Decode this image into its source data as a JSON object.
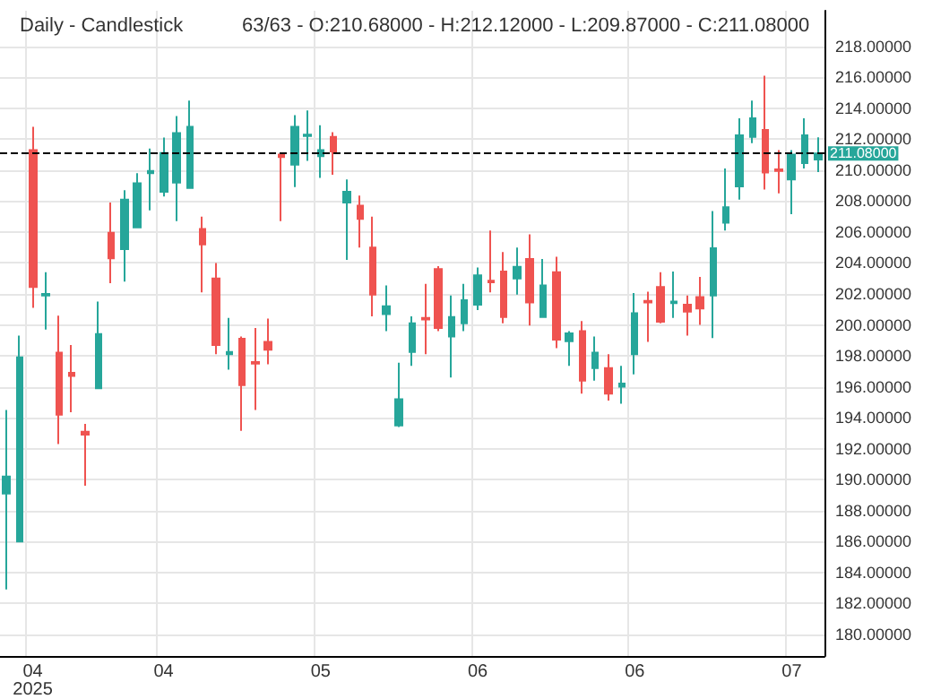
{
  "chart_data": {
    "type": "candlestick",
    "title": "Daily - Candlestick",
    "subtitle": "63/63 - O:210.68000 - H:212.12000 - L:209.87000 - C:211.08000",
    "categories": [
      null,
      null,
      "04\n2025",
      null,
      null,
      null,
      null,
      null,
      null,
      null,
      null,
      null,
      "04",
      null,
      null,
      null,
      null,
      null,
      null,
      null,
      null,
      null,
      null,
      null,
      "05",
      null,
      null,
      null,
      null,
      null,
      null,
      null,
      null,
      null,
      null,
      null,
      "06",
      null,
      null,
      null,
      null,
      null,
      null,
      null,
      null,
      null,
      null,
      null,
      "06",
      null,
      null,
      null,
      null,
      null,
      null,
      null,
      null,
      null,
      null,
      null,
      "07",
      null,
      null
    ],
    "ohlc": [
      [
        189.1,
        194.5,
        182.9,
        190.2
      ],
      [
        186.0,
        199.3,
        186.0,
        197.9
      ],
      [
        211.3,
        212.8,
        201.1,
        202.45
      ],
      [
        201.9,
        203.4,
        199.7,
        202.0
      ],
      [
        198.2,
        200.6,
        192.3,
        194.2
      ],
      [
        196.9,
        198.7,
        194.35,
        196.7
      ],
      [
        193.1,
        193.6,
        189.6,
        192.9
      ],
      [
        195.9,
        201.5,
        195.9,
        199.4
      ],
      [
        205.95,
        207.9,
        202.7,
        204.3
      ],
      [
        204.9,
        208.7,
        202.8,
        208.1
      ],
      [
        206.3,
        209.8,
        206.3,
        209.15
      ],
      [
        209.8,
        211.4,
        207.4,
        209.95
      ],
      [
        208.6,
        212.1,
        208.3,
        211.1
      ],
      [
        209.2,
        213.5,
        206.7,
        212.4
      ],
      [
        208.85,
        214.5,
        208.85,
        212.8
      ],
      [
        206.2,
        207.0,
        202.1,
        205.2
      ],
      [
        203.0,
        204.0,
        198.1,
        198.7
      ],
      [
        198.1,
        200.45,
        197.1,
        198.25
      ],
      [
        199.1,
        199.25,
        193.15,
        196.1
      ],
      [
        197.6,
        199.8,
        194.5,
        197.5
      ],
      [
        198.9,
        200.4,
        197.45,
        198.4
      ],
      [
        211.0,
        211.1,
        206.7,
        210.85
      ],
      [
        210.35,
        213.55,
        208.9,
        212.8
      ],
      [
        212.2,
        213.85,
        210.6,
        212.3
      ],
      [
        210.9,
        212.9,
        209.5,
        211.3
      ],
      [
        212.15,
        212.45,
        209.7,
        211.2
      ],
      [
        207.9,
        209.4,
        204.2,
        208.6
      ],
      [
        207.7,
        208.35,
        205.0,
        206.85
      ],
      [
        205.0,
        207.0,
        200.55,
        201.95
      ],
      [
        200.7,
        202.55,
        199.6,
        201.2
      ],
      [
        193.5,
        197.55,
        193.4,
        195.2
      ],
      [
        198.25,
        200.55,
        197.35,
        200.1
      ],
      [
        200.45,
        202.65,
        198.1,
        200.35
      ],
      [
        203.6,
        203.8,
        199.6,
        199.8
      ],
      [
        199.25,
        201.9,
        196.6,
        200.5
      ],
      [
        200.1,
        202.65,
        199.6,
        201.6
      ],
      [
        201.3,
        203.7,
        200.95,
        203.2
      ],
      [
        202.85,
        206.1,
        202.1,
        202.75
      ],
      [
        203.45,
        204.7,
        200.1,
        200.5
      ],
      [
        203.0,
        205.0,
        201.95,
        203.75
      ],
      [
        204.25,
        205.85,
        199.95,
        201.45
      ],
      [
        200.5,
        204.25,
        200.5,
        202.55
      ],
      [
        203.4,
        204.4,
        198.5,
        199.05
      ],
      [
        198.95,
        199.6,
        197.35,
        199.45
      ],
      [
        199.6,
        200.25,
        195.55,
        196.4
      ],
      [
        197.2,
        199.25,
        196.4,
        198.2
      ],
      [
        197.2,
        198.1,
        195.1,
        195.55
      ],
      [
        196.0,
        197.35,
        194.9,
        196.2
      ],
      [
        198.1,
        202.05,
        196.8,
        200.75
      ],
      [
        201.55,
        202.15,
        198.9,
        201.45
      ],
      [
        202.45,
        203.4,
        200.1,
        200.2
      ],
      [
        201.4,
        203.45,
        200.45,
        201.5
      ],
      [
        201.3,
        201.9,
        199.3,
        200.85
      ],
      [
        201.8,
        203.1,
        200.0,
        201.05
      ],
      [
        201.9,
        207.35,
        199.15,
        204.95
      ],
      [
        206.6,
        210.1,
        206.1,
        207.6
      ],
      [
        208.95,
        213.35,
        208.1,
        212.25
      ],
      [
        212.15,
        214.5,
        211.75,
        213.35
      ],
      [
        212.6,
        216.1,
        208.75,
        209.85
      ],
      [
        210.05,
        211.3,
        208.5,
        209.95
      ],
      [
        209.4,
        211.3,
        207.15,
        211.0
      ],
      [
        210.45,
        213.35,
        210.1,
        212.25
      ],
      [
        210.68,
        212.12,
        209.87,
        211.08
      ]
    ],
    "colors": [
      "#26a69a",
      "#26a69a",
      "#ef5350",
      "#26a69a",
      "#ef5350",
      "#ef5350",
      "#ef5350",
      "#26a69a",
      "#ef5350",
      "#26a69a",
      "#26a69a",
      "#26a69a",
      "#26a69a",
      "#26a69a",
      "#26a69a",
      "#ef5350",
      "#ef5350",
      "#26a69a",
      "#ef5350",
      "#ef5350",
      "#ef5350",
      "#ef5350",
      "#26a69a",
      "#26a69a",
      "#26a69a",
      "#ef5350",
      "#26a69a",
      "#ef5350",
      "#ef5350",
      "#26a69a",
      "#26a69a",
      "#26a69a",
      "#ef5350",
      "#ef5350",
      "#26a69a",
      "#26a69a",
      "#26a69a",
      "#ef5350",
      "#ef5350",
      "#26a69a",
      "#ef5350",
      "#26a69a",
      "#ef5350",
      "#26a69a",
      "#ef5350",
      "#26a69a",
      "#ef5350",
      "#26a69a",
      "#26a69a",
      "#ef5350",
      "#ef5350",
      "#26a69a",
      "#ef5350",
      "#ef5350",
      "#26a69a",
      "#26a69a",
      "#26a69a",
      "#26a69a",
      "#ef5350",
      "#ef5350",
      "#26a69a",
      "#26a69a",
      "#26a69a"
    ],
    "ylim": [
      178.6,
      220.3
    ],
    "yticks": [
      {
        "value": 180,
        "label": "180.00000"
      },
      {
        "value": 182,
        "label": "182.00000"
      },
      {
        "value": 184,
        "label": "184.00000"
      },
      {
        "value": 186,
        "label": "186.00000"
      },
      {
        "value": 188,
        "label": "188.00000"
      },
      {
        "value": 190,
        "label": "190.00000"
      },
      {
        "value": 192,
        "label": "192.00000"
      },
      {
        "value": 194,
        "label": "194.00000"
      },
      {
        "value": 196,
        "label": "196.00000"
      },
      {
        "value": 198,
        "label": "198.00000"
      },
      {
        "value": 200,
        "label": "200.00000"
      },
      {
        "value": 202,
        "label": "202.00000"
      },
      {
        "value": 204,
        "label": "204.00000"
      },
      {
        "value": 206,
        "label": "206.00000"
      },
      {
        "value": 208,
        "label": "208.00000"
      },
      {
        "value": 210,
        "label": "210.00000"
      },
      {
        "value": 212,
        "label": "212.00000"
      },
      {
        "value": 214,
        "label": "214.00000"
      },
      {
        "value": 216,
        "label": "216.00000"
      },
      {
        "value": 218,
        "label": "218.00000"
      }
    ],
    "ref_lines": [
      {
        "axis": "y",
        "value": 211.08,
        "label": "211.08000",
        "color": "#000000",
        "line_style": "dashed"
      }
    ],
    "grid": true
  }
}
